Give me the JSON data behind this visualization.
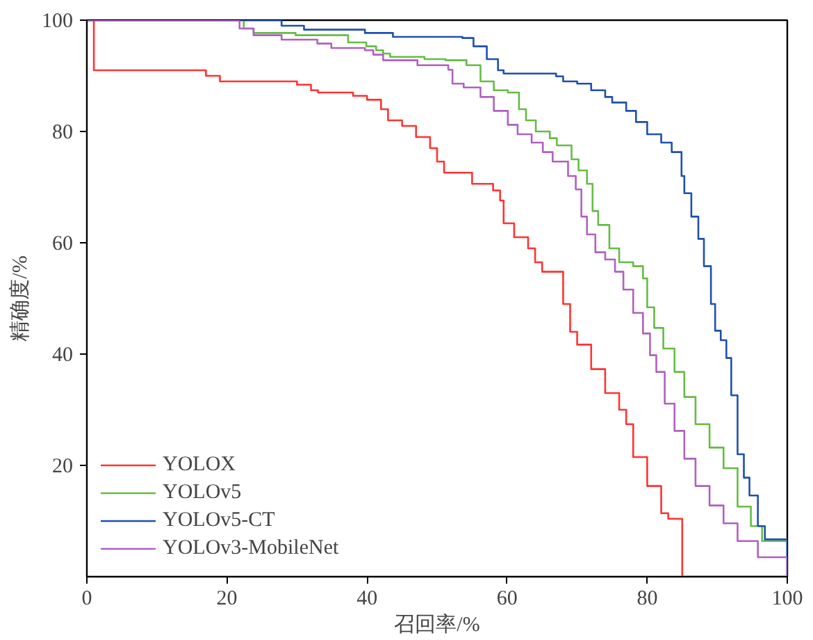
{
  "chart_data": {
    "type": "step",
    "xlabel": "召回率/%",
    "ylabel": "精确度/%",
    "xlim": [
      0,
      100
    ],
    "ylim": [
      0,
      100
    ],
    "xticks": [
      0,
      20,
      40,
      60,
      80,
      100
    ],
    "yticks": [
      20,
      40,
      60,
      80,
      100
    ],
    "grid": false,
    "legend": "bottom left",
    "marker": "none",
    "line_style": "solid",
    "series": [
      {
        "name": "YOLOX",
        "color": "#ff3333",
        "x": [
          0,
          1,
          17,
          19,
          30,
          32,
          33,
          38,
          40,
          42,
          43,
          45,
          47,
          49,
          50,
          51,
          55,
          58,
          59,
          59.5,
          61,
          63,
          64,
          65,
          68,
          69,
          70,
          72,
          74,
          76,
          77,
          78,
          80,
          82,
          83,
          85,
          100
        ],
        "values": [
          100,
          91,
          90,
          89,
          88.4,
          87.4,
          87,
          86.4,
          85.7,
          84,
          82,
          81,
          79,
          77,
          74.6,
          72.6,
          70.6,
          69.4,
          67.6,
          63.5,
          61,
          59,
          56.5,
          54.8,
          49,
          44,
          41.7,
          37.3,
          33,
          30,
          27.4,
          21.5,
          16.3,
          11.4,
          10.4,
          0,
          0
        ]
      },
      {
        "name": "YOLOv5",
        "color": "#66bb44",
        "x": [
          0,
          22.4,
          23.8,
          29.8,
          37.3,
          39.9,
          41.3,
          42.3,
          43.3,
          48.2,
          51.2,
          54.2,
          56.2,
          58.1,
          60.1,
          61.7,
          62.7,
          64.1,
          66.1,
          67.1,
          69.2,
          70.2,
          71.4,
          72.2,
          73,
          74.6,
          76,
          78,
          79.4,
          80,
          81,
          82.3,
          83.9,
          85.3,
          86.9,
          88.9,
          90.9,
          92.9,
          94.8,
          96.4,
          100
        ],
        "values": [
          100,
          98.5,
          97.7,
          97.3,
          96,
          95.3,
          94.6,
          94,
          93.4,
          93,
          92.8,
          91.9,
          89,
          87.4,
          87,
          84,
          82,
          80,
          78.8,
          77.5,
          75,
          73,
          70.6,
          65.7,
          63.2,
          59,
          56.5,
          55.8,
          53.6,
          48.4,
          44.7,
          41,
          36.8,
          32.3,
          27.4,
          23.2,
          19.5,
          12.6,
          9.1,
          6.4,
          0
        ]
      },
      {
        "name": "YOLOv5-CT",
        "color": "#1f4fb0",
        "x": [
          0,
          27.8,
          31,
          39.7,
          43.7,
          53.6,
          55.2,
          57.1,
          58.7,
          59.5,
          67,
          68,
          70,
          72,
          74,
          75,
          77,
          78.4,
          80,
          82,
          83.5,
          84.9,
          85.3,
          86.3,
          87.3,
          88.1,
          89.1,
          89.7,
          90.5,
          91.3,
          92,
          92.9,
          93.8,
          94.6,
          95.8,
          96.8,
          100
        ],
        "values": [
          100,
          99,
          98.3,
          97.7,
          97,
          96.8,
          95.3,
          93,
          91,
          90.4,
          89.9,
          89,
          88.6,
          87.4,
          86.2,
          85.2,
          83.7,
          81.7,
          79.5,
          78,
          76.3,
          72,
          68.9,
          64.7,
          60.7,
          55.8,
          49,
          44.2,
          42.5,
          39.3,
          32.6,
          22,
          17.8,
          14.6,
          9.1,
          6.7,
          0
        ]
      },
      {
        "name": "YOLOv3-MobileNet",
        "color": "#b060c0",
        "x": [
          0,
          21.8,
          23.8,
          27.8,
          32.9,
          34.9,
          39.7,
          40.9,
          42.3,
          47.2,
          51.6,
          52.2,
          53.8,
          56.2,
          58.1,
          60.1,
          61.5,
          63.5,
          65.1,
          66.5,
          68.7,
          69.8,
          70.6,
          71.4,
          72.6,
          74,
          75.4,
          76.6,
          78,
          79.4,
          80.4,
          81.3,
          82.5,
          83.9,
          85.3,
          86.9,
          88.9,
          90.9,
          92.9,
          95.8,
          100
        ],
        "values": [
          100,
          98.5,
          97.3,
          96.5,
          95.8,
          95,
          94.6,
          93.8,
          92.8,
          91.9,
          91.1,
          88.6,
          87.9,
          86.2,
          83.7,
          81.2,
          79.5,
          78,
          76.3,
          74.6,
          72,
          69.6,
          64.7,
          61.5,
          58.3,
          57,
          54.8,
          51.6,
          47.4,
          43.7,
          39.8,
          36.8,
          31.1,
          26.2,
          21.2,
          16.3,
          12.8,
          9.6,
          6.4,
          3.5,
          0
        ]
      }
    ]
  }
}
